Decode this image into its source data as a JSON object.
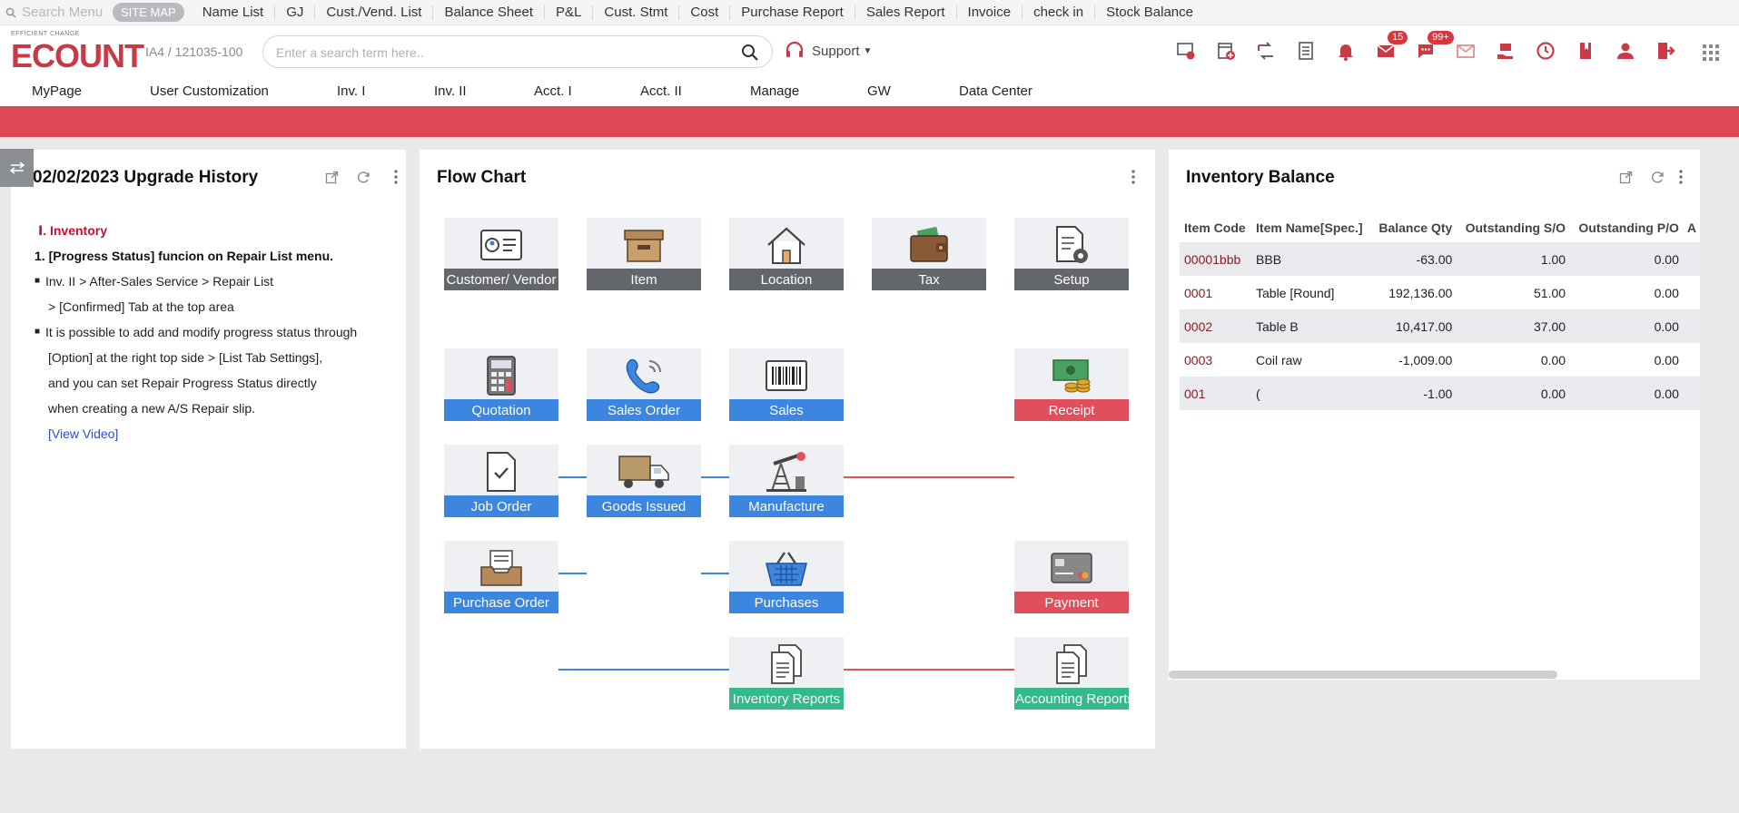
{
  "quickbar": {
    "search_placeholder": "Search Menu",
    "site_map": "SITE MAP",
    "links": [
      "Name List",
      "GJ",
      "Cust./Vend. List",
      "Balance Sheet",
      "P&L",
      "Cust. Stmt",
      "Cost",
      "Purchase Report",
      "Sales Report",
      "Invoice",
      "check in",
      "Stock Balance"
    ]
  },
  "header": {
    "logo_tag": "EFFICIENT CHANGE",
    "logo_word": "ECOUNT",
    "company": "IA4 / 121035-100",
    "search_placeholder": "Enter a search term here..",
    "support": "Support",
    "badges": {
      "messages": "15",
      "chat": "99+"
    }
  },
  "nav": [
    "MyPage",
    "User Customization",
    "Inv. I",
    "Inv. II",
    "Acct. I",
    "Acct. II",
    "Manage",
    "GW",
    "Data Center"
  ],
  "upgrade": {
    "title": "02/02/2023 Upgrade History",
    "section": "Ⅰ. Inventory",
    "heading": "1. [Progress Status] funcion on Repair List menu.",
    "bullet1": "Inv. II  > After-Sales Service > Repair List",
    "bullet1_cont": "> [Confirmed] Tab at the top area",
    "bullet2": "It is possible to add and modify progress status through",
    "bullet2_l2": "[Option] at the right top side > [List Tab Settings],",
    "bullet2_l3": "and you can set Repair Progress Status directly",
    "bullet2_l4": "when creating a new A/S Repair slip.",
    "video": "[View Video]"
  },
  "flow": {
    "title": "Flow Chart",
    "nodes": {
      "customer": "Customer/ Vendor",
      "item": "Item",
      "location": "Location",
      "tax": "Tax",
      "setup": "Setup",
      "quotation": "Quotation",
      "sales_order": "Sales Order",
      "sales": "Sales",
      "receipt": "Receipt",
      "job_order": "Job Order",
      "goods_issued": "Goods Issued",
      "manufacture": "Manufacture",
      "purchase_order": "Purchase Order",
      "purchases": "Purchases",
      "payment": "Payment",
      "inventory_reports": "Inventory Reports",
      "accounting_reports": "Accounting Reports"
    }
  },
  "inventory": {
    "title": "Inventory Balance",
    "columns": [
      "Item Code",
      "Item Name[Spec.]",
      "Balance Qty",
      "Outstanding S/O",
      "Outstanding P/O",
      "A"
    ],
    "rows": [
      {
        "code": "00001bbb",
        "name": "BBB",
        "qty": "-63.00",
        "so": "1.00",
        "po": "0.00"
      },
      {
        "code": "0001",
        "name": "Table [Round]",
        "qty": "192,136.00",
        "so": "51.00",
        "po": "0.00"
      },
      {
        "code": "0002",
        "name": "Table B",
        "qty": "10,417.00",
        "so": "37.00",
        "po": "0.00"
      },
      {
        "code": "0003",
        "name": "Coil raw",
        "qty": "-1,009.00",
        "so": "0.00",
        "po": "0.00"
      },
      {
        "code": "001",
        "name": "(",
        "qty": "-1.00",
        "so": "0.00",
        "po": "0.00"
      }
    ]
  },
  "colors": {
    "brand": "#c83a46",
    "red_bar": "#dc4853",
    "flow_blue": "#3c86e0",
    "flow_red": "#e04f5c",
    "flow_gray": "#63666b",
    "flow_green": "#34b98a"
  }
}
